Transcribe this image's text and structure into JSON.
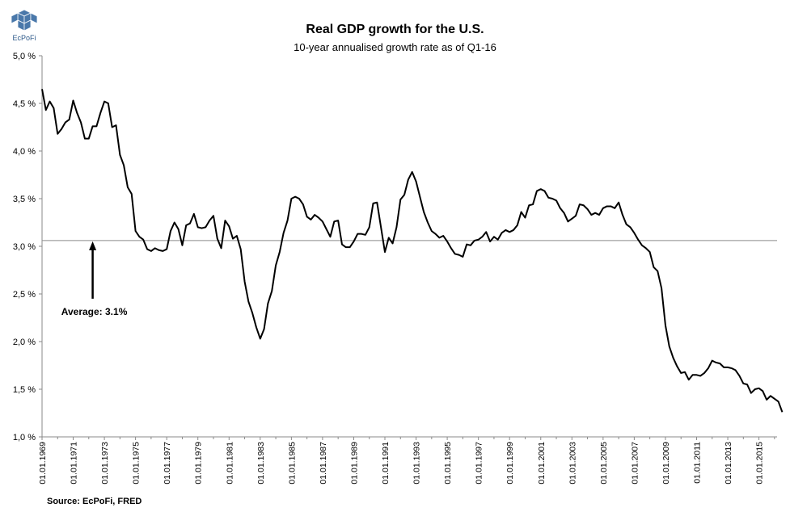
{
  "logo": {
    "icon": "ecpofi-cube-logo-icon",
    "text": "EcPoFi",
    "color": "#2e5a8a"
  },
  "source": "Source: EcPoFi,  FRED",
  "chart_data": {
    "type": "line",
    "title": "Real GDP growth for the U.S.",
    "subtitle": "10-year annualised growth rate as of Q1-16",
    "xlabel": "",
    "ylabel": "",
    "ylim": [
      1.0,
      5.0
    ],
    "y_ticks": [
      "1,0 %",
      "1,5 %",
      "2,0 %",
      "2,5 %",
      "3,0 %",
      "3,5 %",
      "4,0 %",
      "4,5 %",
      "5,0 %"
    ],
    "x_ticks": [
      "01.01.1969",
      "01.01.1971",
      "01.01.1973",
      "01.01.1975",
      "01.01.1977",
      "01.01.1979",
      "01.01.1981",
      "01.01.1983",
      "01.01.1985",
      "01.01.1987",
      "01.01.1989",
      "01.01.1991",
      "01.01.1993",
      "01.01.1995",
      "01.01.1997",
      "01.01.1999",
      "01.01.2001",
      "01.01.2003",
      "01.01.2005",
      "01.01.2007",
      "01.01.2009",
      "01.01.2011",
      "01.01.2013",
      "01.01.2015"
    ],
    "grid": false,
    "line_color": "#000000",
    "series": [
      {
        "x_start": "1969-01-01",
        "frequency": "quarterly",
        "values": [
          4.65,
          4.43,
          4.52,
          4.45,
          4.18,
          4.23,
          4.3,
          4.33,
          4.53,
          4.4,
          4.3,
          4.13,
          4.13,
          4.26,
          4.26,
          4.4,
          4.52,
          4.5,
          4.25,
          4.27,
          3.96,
          3.85,
          3.62,
          3.55,
          3.16,
          3.1,
          3.07,
          2.97,
          2.95,
          2.98,
          2.96,
          2.95,
          2.97,
          3.16,
          3.25,
          3.18,
          3.01,
          3.22,
          3.24,
          3.34,
          3.2,
          3.19,
          3.2,
          3.27,
          3.32,
          3.08,
          2.98,
          3.27,
          3.21,
          3.08,
          3.11,
          2.97,
          2.63,
          2.42,
          2.3,
          2.15,
          2.03,
          2.13,
          2.4,
          2.53,
          2.8,
          2.94,
          3.14,
          3.27,
          3.5,
          3.52,
          3.5,
          3.44,
          3.31,
          3.28,
          3.33,
          3.3,
          3.26,
          3.18,
          3.1,
          3.26,
          3.27,
          3.02,
          2.99,
          2.99,
          3.05,
          3.13,
          3.13,
          3.12,
          3.2,
          3.45,
          3.46,
          3.2,
          2.94,
          3.09,
          3.03,
          3.2,
          3.49,
          3.54,
          3.7,
          3.78,
          3.68,
          3.52,
          3.36,
          3.25,
          3.16,
          3.13,
          3.09,
          3.11,
          3.05,
          2.98,
          2.92,
          2.91,
          2.89,
          3.02,
          3.01,
          3.06,
          3.07,
          3.1,
          3.15,
          3.05,
          3.1,
          3.07,
          3.14,
          3.17,
          3.15,
          3.17,
          3.22,
          3.36,
          3.3,
          3.43,
          3.44,
          3.58,
          3.6,
          3.58,
          3.51,
          3.5,
          3.48,
          3.4,
          3.35,
          3.26,
          3.29,
          3.32,
          3.44,
          3.43,
          3.39,
          3.33,
          3.35,
          3.33,
          3.4,
          3.42,
          3.42,
          3.4,
          3.46,
          3.33,
          3.23,
          3.2,
          3.14,
          3.07,
          3.01,
          2.98,
          2.94,
          2.78,
          2.74,
          2.56,
          2.17,
          1.95,
          1.83,
          1.74,
          1.67,
          1.68,
          1.6,
          1.65,
          1.65,
          1.64,
          1.67,
          1.72,
          1.8,
          1.78,
          1.77,
          1.73,
          1.73,
          1.72,
          1.7,
          1.64,
          1.56,
          1.55,
          1.46,
          1.5,
          1.51,
          1.48,
          1.39,
          1.43,
          1.4,
          1.37,
          1.26
        ]
      }
    ],
    "average": {
      "value": 3.06,
      "label": "Average: 3.1%",
      "x_date": "1972-04-01"
    }
  }
}
